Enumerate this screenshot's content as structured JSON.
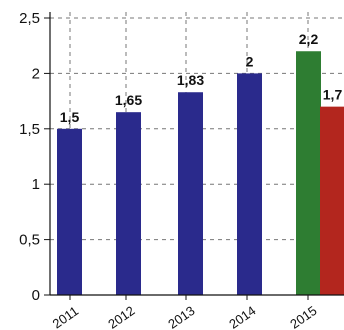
{
  "chart_data": {
    "type": "bar",
    "title": "",
    "xlabel": "",
    "ylabel": "",
    "ylim": [
      0,
      2.5
    ],
    "yticks": [
      0,
      0.5,
      1,
      1.5,
      2,
      2.5
    ],
    "ytick_labels": [
      "0",
      "0,5",
      "1",
      "1,5",
      "2",
      "2,5"
    ],
    "grid": "dashed",
    "legend": "none",
    "categories": [
      "2011",
      "2012",
      "2013",
      "2014",
      "2015"
    ],
    "bars": [
      {
        "category": "2011",
        "value": 1.5,
        "label": "1,5",
        "color": "#2a2a8c"
      },
      {
        "category": "2012",
        "value": 1.65,
        "label": "1,65",
        "color": "#2a2a8c"
      },
      {
        "category": "2013",
        "value": 1.83,
        "label": "1,83",
        "color": "#2a2a8c"
      },
      {
        "category": "2014",
        "value": 2.0,
        "label": "2",
        "color": "#2a2a8c"
      },
      {
        "category": "2015",
        "value": 2.2,
        "label": "2,2",
        "color": "#2e7d32"
      },
      {
        "category": "2015",
        "value": 1.7,
        "label": "1,7",
        "color": "#b3261e"
      }
    ]
  }
}
